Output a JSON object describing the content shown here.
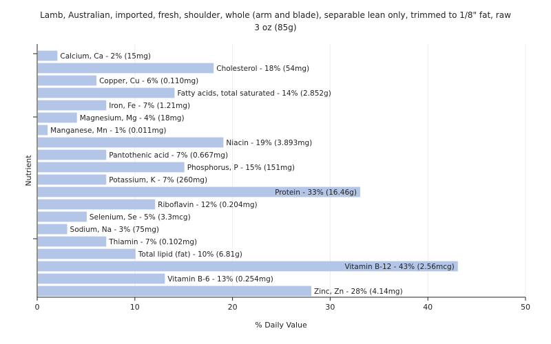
{
  "chart_data": {
    "type": "bar",
    "orientation": "horizontal",
    "title_line1": "Lamb, Australian, imported, fresh, shoulder, whole (arm and blade), separable lean only,   trimmed to 1/8\" fat, raw",
    "title_line2": "3 oz (85g)",
    "xlabel": "% Daily Value",
    "ylabel": "Nutrient",
    "xlim": [
      0,
      50
    ],
    "xticks": [
      "0",
      "10",
      "20",
      "30",
      "40",
      "50"
    ],
    "grid": true,
    "bar_color": "#b3c6e8",
    "categories": [
      "Calcium, Ca",
      "Cholesterol",
      "Copper, Cu",
      "Fatty acids, total saturated",
      "Iron, Fe",
      "Magnesium, Mg",
      "Manganese, Mn",
      "Niacin",
      "Pantothenic acid",
      "Phosphorus, P",
      "Potassium, K",
      "Protein",
      "Riboflavin",
      "Selenium, Se",
      "Sodium, Na",
      "Thiamin",
      "Total lipid (fat)",
      "Vitamin B-12",
      "Vitamin B-6",
      "Zinc, Zn"
    ],
    "values": [
      2,
      18,
      6,
      14,
      7,
      4,
      1,
      19,
      7,
      15,
      7,
      33,
      12,
      5,
      3,
      7,
      10,
      43,
      13,
      28
    ],
    "labels": [
      "Calcium, Ca - 2% (15mg)",
      "Cholesterol - 18% (54mg)",
      "Copper, Cu - 6% (0.110mg)",
      "Fatty acids, total saturated - 14% (2.852g)",
      "Iron, Fe - 7% (1.21mg)",
      "Magnesium, Mg - 4% (18mg)",
      "Manganese, Mn - 1% (0.011mg)",
      "Niacin - 19% (3.893mg)",
      "Pantothenic acid - 7% (0.667mg)",
      "Phosphorus, P - 15% (151mg)",
      "Potassium, K - 7% (260mg)",
      "Protein - 33% (16.46g)",
      "Riboflavin - 12% (0.204mg)",
      "Selenium, Se - 5% (3.3mcg)",
      "Sodium, Na - 3% (75mg)",
      "Thiamin - 7% (0.102mg)",
      "Total lipid (fat) - 10% (6.81g)",
      "Vitamin B-12 - 43% (2.56mcg)",
      "Vitamin B-6 - 13% (0.254mg)",
      "Zinc, Zn - 28% (4.14mg)"
    ]
  }
}
